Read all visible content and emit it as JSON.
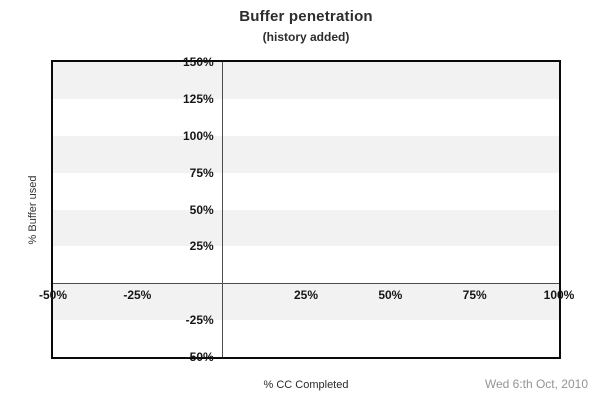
{
  "header": {
    "title": "Buffer penetration",
    "subtitle": "(history added)"
  },
  "footer": {
    "date": "Wed 6:th Oct, 2010"
  },
  "chart_data": {
    "type": "line",
    "title": "Buffer penetration",
    "subtitle": "(history added)",
    "xlabel": "% CC Completed",
    "ylabel": "% Buffer used",
    "xlim": [
      -50,
      100
    ],
    "ylim": [
      -50,
      150
    ],
    "x_ticks": [
      {
        "value": -50,
        "label": "-50%"
      },
      {
        "value": -25,
        "label": "-25%"
      },
      {
        "value": 25,
        "label": "25%"
      },
      {
        "value": 50,
        "label": "50%"
      },
      {
        "value": 75,
        "label": "75%"
      },
      {
        "value": 100,
        "label": "100%"
      }
    ],
    "y_ticks": [
      {
        "value": 150,
        "label": "150%"
      },
      {
        "value": 125,
        "label": "125%"
      },
      {
        "value": 100,
        "label": "100%"
      },
      {
        "value": 75,
        "label": "75%"
      },
      {
        "value": 50,
        "label": "50%"
      },
      {
        "value": 25,
        "label": "25%"
      },
      {
        "value": -25,
        "label": "-25%"
      },
      {
        "value": -50,
        "label": "-50%"
      }
    ],
    "bands": {
      "interval_pct": 25,
      "pattern": "alternating, starting gray at top (150%)",
      "band_color": "#f2f2f2",
      "alt_color": "#ffffff"
    },
    "grid": "horizontal bands only",
    "legend": "none",
    "series": []
  },
  "colors": {
    "plot_border": "#0a0a0a",
    "zero_axis_line": "#4d4d4d",
    "band_gray": "#f2f2f2",
    "tick_text": "#161616",
    "title_text": "#2d2d2d",
    "date_text": "#949494",
    "background": "#ffffff"
  }
}
